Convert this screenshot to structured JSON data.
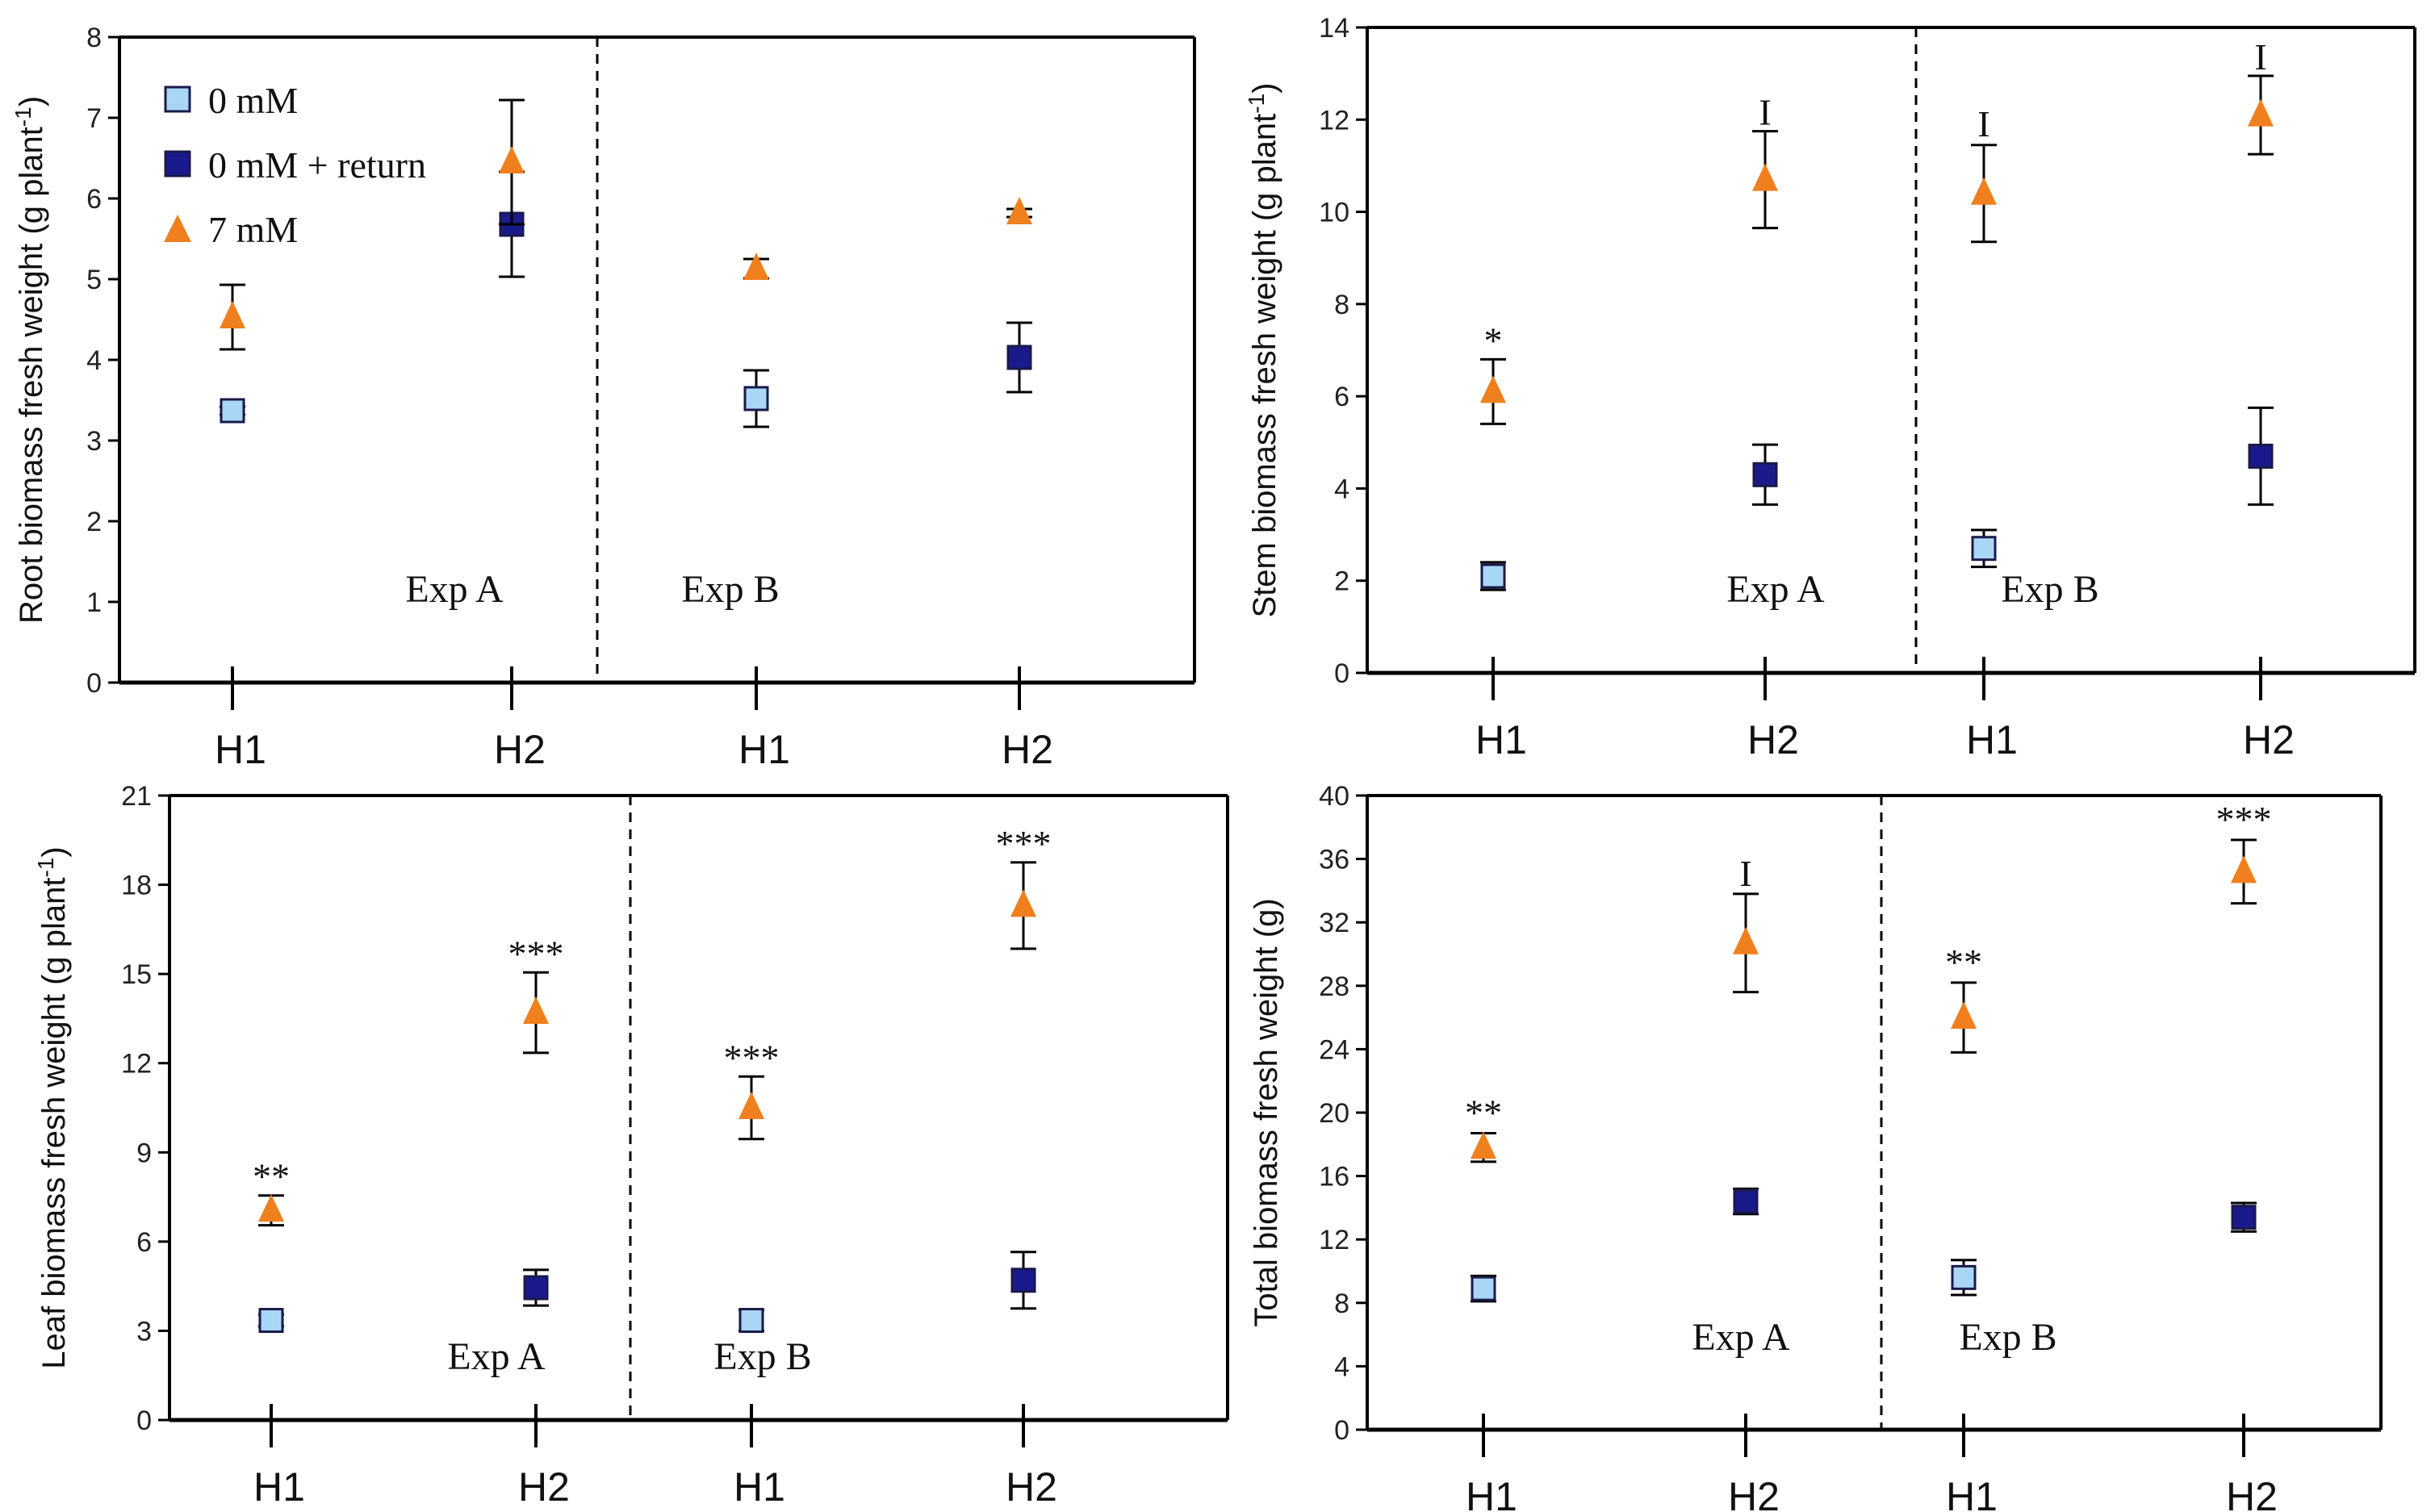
{
  "legend": {
    "items": [
      {
        "label": "0 mM",
        "marker": "square",
        "color": "#a9d6f5"
      },
      {
        "label": "0 mM + return",
        "marker": "square",
        "color": "#1a1a8c"
      },
      {
        "label": "7 mM",
        "marker": "triangle",
        "color": "#f07f1e"
      }
    ]
  },
  "chart_data": [
    {
      "type": "scatter",
      "title": "",
      "ylabel": "Root biomass fresh weight (g plant-1)",
      "ylim": [
        0,
        8
      ],
      "yticks": [
        0,
        1,
        2,
        3,
        4,
        5,
        6,
        7,
        8
      ],
      "categories": [
        "H1",
        "H2",
        "H1",
        "H2"
      ],
      "experiments": [
        "Exp A",
        "Exp B"
      ],
      "series": [
        {
          "name": "0 mM",
          "points": [
            {
              "cat": 0,
              "y": 3.37,
              "err": 0.05
            },
            {
              "cat": 2,
              "y": 3.52,
              "err": 0.35
            }
          ]
        },
        {
          "name": "0 mM + return",
          "points": [
            {
              "cat": 1,
              "y": 5.68,
              "err": 0.65
            },
            {
              "cat": 3,
              "y": 4.03,
              "err": 0.43
            }
          ]
        },
        {
          "name": "7 mM",
          "points": [
            {
              "cat": 0,
              "y": 4.53,
              "err": 0.4
            },
            {
              "cat": 1,
              "y": 6.45,
              "err": 0.77
            },
            {
              "cat": 2,
              "y": 5.13,
              "err": 0.12
            },
            {
              "cat": 3,
              "y": 5.82,
              "err": 0.05
            }
          ]
        }
      ],
      "annotations": []
    },
    {
      "type": "scatter",
      "title": "",
      "ylabel": "Stem biomass fresh weight (g plant-1)",
      "ylim": [
        0,
        14
      ],
      "yticks": [
        0,
        2,
        4,
        6,
        8,
        10,
        12,
        14
      ],
      "categories": [
        "H1",
        "H2",
        "H1",
        "H2"
      ],
      "experiments": [
        "Exp A",
        "Exp B"
      ],
      "series": [
        {
          "name": "0 mM",
          "points": [
            {
              "cat": 0,
              "y": 2.1,
              "err": 0.3
            },
            {
              "cat": 2,
              "y": 2.7,
              "err": 0.4
            }
          ]
        },
        {
          "name": "0 mM + return",
          "points": [
            {
              "cat": 1,
              "y": 4.3,
              "err": 0.65
            },
            {
              "cat": 3,
              "y": 4.7,
              "err": 1.05
            }
          ]
        },
        {
          "name": "7 mM",
          "points": [
            {
              "cat": 0,
              "y": 6.1,
              "err": 0.7
            },
            {
              "cat": 1,
              "y": 10.7,
              "err": 1.05
            },
            {
              "cat": 2,
              "y": 10.4,
              "err": 1.05
            },
            {
              "cat": 3,
              "y": 12.1,
              "err": 0.85
            }
          ]
        }
      ],
      "annotations": [
        {
          "cat": 0,
          "y": 6.8,
          "text": "*"
        },
        {
          "cat": 1,
          "y": 11.75,
          "text": "I"
        },
        {
          "cat": 2,
          "y": 11.5,
          "text": "I"
        },
        {
          "cat": 3,
          "y": 12.95,
          "text": "I"
        }
      ]
    },
    {
      "type": "scatter",
      "title": "",
      "ylabel": "Leaf biomass fresh weight (g plant-1)",
      "ylim": [
        0,
        21
      ],
      "yticks": [
        0,
        3,
        6,
        9,
        12,
        15,
        18,
        21
      ],
      "categories": [
        "H1",
        "H2",
        "H1",
        "H2"
      ],
      "experiments": [
        "Exp A",
        "Exp B"
      ],
      "series": [
        {
          "name": "0 mM",
          "points": [
            {
              "cat": 0,
              "y": 3.35,
              "err": 0.2
            },
            {
              "cat": 2,
              "y": 3.35,
              "err": 0.35
            }
          ]
        },
        {
          "name": "0 mM + return",
          "points": [
            {
              "cat": 1,
              "y": 4.45,
              "err": 0.6
            },
            {
              "cat": 3,
              "y": 4.7,
              "err": 0.95
            }
          ]
        },
        {
          "name": "7 mM",
          "points": [
            {
              "cat": 0,
              "y": 7.05,
              "err": 0.5
            },
            {
              "cat": 1,
              "y": 13.7,
              "err": 1.35
            },
            {
              "cat": 2,
              "y": 10.5,
              "err": 1.05
            },
            {
              "cat": 3,
              "y": 17.3,
              "err": 1.45
            }
          ]
        }
      ],
      "annotations": [
        {
          "cat": 0,
          "y": 7.55,
          "text": "**"
        },
        {
          "cat": 1,
          "y": 15.05,
          "text": "***"
        },
        {
          "cat": 2,
          "y": 11.55,
          "text": "***"
        },
        {
          "cat": 3,
          "y": 18.75,
          "text": "***"
        }
      ]
    },
    {
      "type": "scatter",
      "title": "",
      "ylabel": "Total biomass fresh weight (g)",
      "ylim": [
        0,
        40
      ],
      "yticks": [
        0,
        4,
        8,
        12,
        16,
        20,
        24,
        28,
        32,
        36,
        40
      ],
      "categories": [
        "H1",
        "H2",
        "H1",
        "H2"
      ],
      "experiments": [
        "Exp A",
        "Exp B"
      ],
      "series": [
        {
          "name": "0 mM",
          "points": [
            {
              "cat": 0,
              "y": 8.9,
              "err": 0.8
            },
            {
              "cat": 2,
              "y": 9.6,
              "err": 1.1
            }
          ]
        },
        {
          "name": "0 mM + return",
          "points": [
            {
              "cat": 1,
              "y": 14.4,
              "err": 0.8
            },
            {
              "cat": 3,
              "y": 13.4,
              "err": 0.9
            }
          ]
        },
        {
          "name": "7 mM",
          "points": [
            {
              "cat": 0,
              "y": 17.8,
              "err": 0.9
            },
            {
              "cat": 1,
              "y": 30.7,
              "err": 3.1
            },
            {
              "cat": 2,
              "y": 26.0,
              "err": 2.2
            },
            {
              "cat": 3,
              "y": 35.2,
              "err": 2.0
            }
          ]
        }
      ],
      "annotations": [
        {
          "cat": 0,
          "y": 18.8,
          "text": "**"
        },
        {
          "cat": 1,
          "y": 33.9,
          "text": "I"
        },
        {
          "cat": 2,
          "y": 28.3,
          "text": "**"
        },
        {
          "cat": 3,
          "y": 37.3,
          "text": "***"
        }
      ]
    }
  ]
}
